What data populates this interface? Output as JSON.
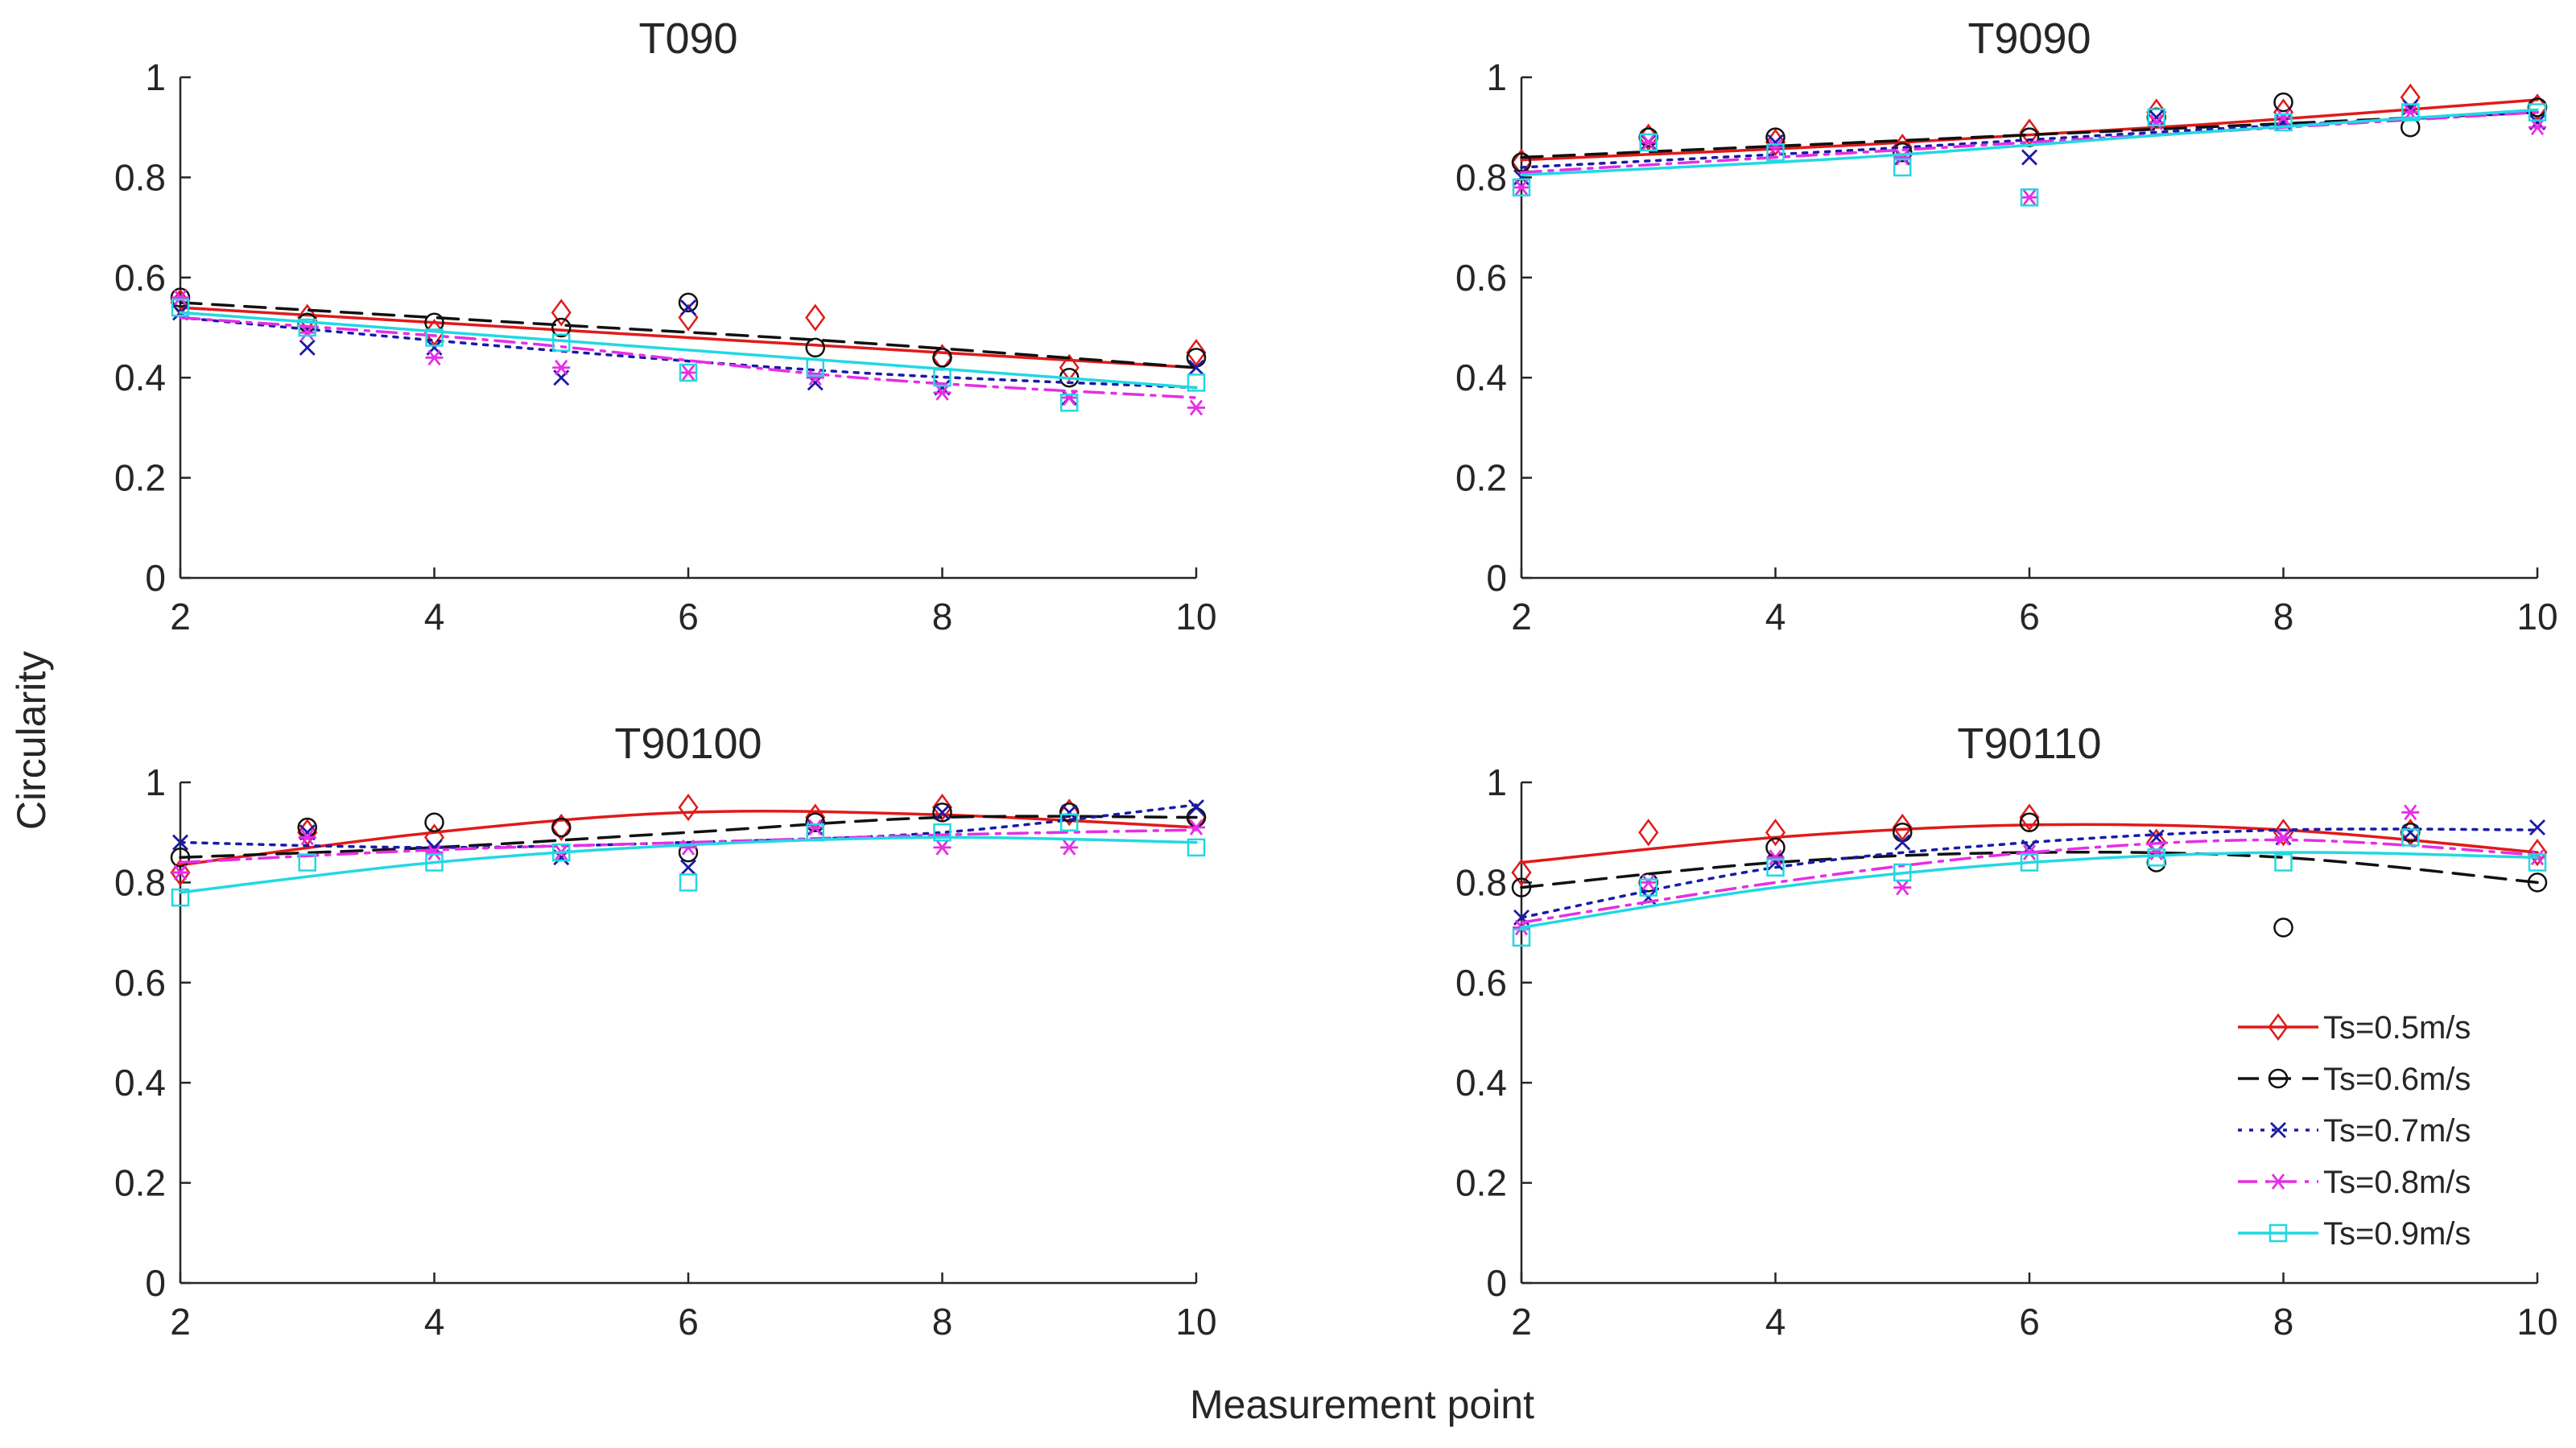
{
  "figure": {
    "xlabel": "Measurement point",
    "ylabel": "Circularity"
  },
  "legend": {
    "placement": "bottom-right of panel T90110",
    "entries": [
      "Ts=0.5m/s",
      "Ts=0.6m/s",
      "Ts=0.7m/s",
      "Ts=0.8m/s",
      "Ts=0.9m/s"
    ]
  },
  "series_styles": [
    {
      "name": "Ts=0.5m/s",
      "color": "#e11a1a",
      "marker": "diamond",
      "dash": "solid"
    },
    {
      "name": "Ts=0.6m/s",
      "color": "#111111",
      "marker": "circle",
      "dash": "dashed"
    },
    {
      "name": "Ts=0.7m/s",
      "color": "#1a1aa6",
      "marker": "x",
      "dash": "dotted"
    },
    {
      "name": "Ts=0.8m/s",
      "color": "#e62ee6",
      "marker": "star",
      "dash": "dashdot"
    },
    {
      "name": "Ts=0.9m/s",
      "color": "#22d8e2",
      "marker": "square",
      "dash": "solid"
    }
  ],
  "chart_data": [
    {
      "type": "scatter",
      "title": "T090",
      "xlabel": "Measurement point",
      "ylabel": "Circularity",
      "xlim": [
        2,
        10
      ],
      "ylim": [
        0,
        1
      ],
      "xticks": [
        2,
        4,
        6,
        8,
        10
      ],
      "yticks": [
        0,
        0.2,
        0.4,
        0.6,
        0.8,
        1
      ],
      "x": [
        2,
        3,
        4,
        5,
        6,
        7,
        8,
        9,
        10
      ],
      "series": [
        {
          "name": "Ts=0.5m/s",
          "values": [
            0.55,
            0.52,
            0.49,
            0.53,
            0.52,
            0.52,
            0.44,
            0.42,
            0.45
          ],
          "fit": [
            0.54,
            0.5,
            0.46,
            0.42
          ]
        },
        {
          "name": "Ts=0.6m/s",
          "values": [
            0.56,
            0.51,
            0.51,
            0.5,
            0.55,
            0.46,
            0.44,
            0.4,
            0.44
          ],
          "fit": [
            0.55,
            0.51,
            0.47,
            0.42
          ]
        },
        {
          "name": "Ts=0.7m/s",
          "values": [
            0.53,
            0.46,
            0.46,
            0.4,
            0.54,
            0.39,
            0.38,
            0.36,
            0.42
          ],
          "fit": [
            0.52,
            0.46,
            0.41,
            0.38
          ]
        },
        {
          "name": "Ts=0.8m/s",
          "values": [
            0.56,
            0.49,
            0.44,
            0.42,
            0.41,
            0.4,
            0.37,
            0.36,
            0.34
          ],
          "fit": [
            0.52,
            0.47,
            0.4,
            0.36
          ]
        },
        {
          "name": "Ts=0.9m/s",
          "values": [
            0.54,
            0.5,
            0.48,
            0.47,
            0.41,
            0.42,
            0.4,
            0.35,
            0.39
          ],
          "fit": [
            0.53,
            0.48,
            0.43,
            0.38
          ]
        }
      ]
    },
    {
      "type": "scatter",
      "title": "T9090",
      "xlabel": "Measurement point",
      "ylabel": "Circularity",
      "xlim": [
        2,
        10
      ],
      "ylim": [
        0,
        1
      ],
      "xticks": [
        2,
        4,
        6,
        8,
        10
      ],
      "yticks": [
        0,
        0.2,
        0.4,
        0.6,
        0.8,
        1
      ],
      "x": [
        2,
        3,
        4,
        5,
        6,
        7,
        8,
        9,
        10
      ],
      "series": [
        {
          "name": "Ts=0.5m/s",
          "values": [
            0.83,
            0.88,
            0.87,
            0.86,
            0.89,
            0.93,
            0.93,
            0.96,
            0.94
          ],
          "fit": [
            0.835,
            0.865,
            0.905,
            0.955
          ]
        },
        {
          "name": "Ts=0.6m/s",
          "values": [
            0.83,
            0.88,
            0.88,
            0.85,
            0.88,
            0.92,
            0.95,
            0.9,
            0.94
          ],
          "fit": [
            0.84,
            0.87,
            0.9,
            0.93
          ]
        },
        {
          "name": "Ts=0.7m/s",
          "values": [
            0.8,
            0.87,
            0.87,
            0.84,
            0.84,
            0.92,
            0.91,
            0.94,
            0.91
          ],
          "fit": [
            0.82,
            0.855,
            0.895,
            0.93
          ]
        },
        {
          "name": "Ts=0.8m/s",
          "values": [
            0.78,
            0.87,
            0.86,
            0.84,
            0.76,
            0.91,
            0.92,
            0.93,
            0.9
          ],
          "fit": [
            0.81,
            0.85,
            0.89,
            0.93
          ]
        },
        {
          "name": "Ts=0.9m/s",
          "values": [
            0.78,
            0.87,
            0.85,
            0.82,
            0.76,
            0.92,
            0.91,
            0.93,
            0.93
          ],
          "fit": [
            0.805,
            0.84,
            0.89,
            0.935
          ]
        }
      ]
    },
    {
      "type": "scatter",
      "title": "T90100",
      "xlabel": "Measurement point",
      "ylabel": "Circularity",
      "xlim": [
        2,
        10
      ],
      "ylim": [
        0,
        1
      ],
      "xticks": [
        2,
        4,
        6,
        8,
        10
      ],
      "yticks": [
        0,
        0.2,
        0.4,
        0.6,
        0.8,
        1
      ],
      "x": [
        2,
        3,
        4,
        5,
        6,
        7,
        8,
        9,
        10
      ],
      "series": [
        {
          "name": "Ts=0.5m/s",
          "values": [
            0.82,
            0.9,
            0.89,
            0.91,
            0.95,
            0.93,
            0.95,
            0.94,
            0.93
          ],
          "fit": [
            0.835,
            0.9,
            0.94,
            0.935,
            0.91
          ]
        },
        {
          "name": "Ts=0.6m/s",
          "values": [
            0.85,
            0.91,
            0.92,
            0.91,
            0.86,
            0.92,
            0.94,
            0.94,
            0.93
          ],
          "fit": [
            0.85,
            0.87,
            0.9,
            0.93,
            0.93
          ]
        },
        {
          "name": "Ts=0.7m/s",
          "values": [
            0.88,
            0.9,
            0.87,
            0.85,
            0.83,
            0.91,
            0.94,
            0.94,
            0.95
          ],
          "fit": [
            0.88,
            0.87,
            0.88,
            0.9,
            0.955
          ]
        },
        {
          "name": "Ts=0.8m/s",
          "values": [
            0.82,
            0.89,
            0.86,
            0.86,
            0.87,
            0.91,
            0.87,
            0.87,
            0.91
          ],
          "fit": [
            0.84,
            0.865,
            0.88,
            0.895,
            0.905
          ]
        },
        {
          "name": "Ts=0.9m/s",
          "values": [
            0.77,
            0.84,
            0.84,
            0.86,
            0.8,
            0.9,
            0.9,
            0.92,
            0.87
          ],
          "fit": [
            0.78,
            0.84,
            0.875,
            0.89,
            0.88
          ]
        }
      ]
    },
    {
      "type": "scatter",
      "title": "T90110",
      "xlabel": "Measurement point",
      "ylabel": "Circularity",
      "xlim": [
        2,
        10
      ],
      "ylim": [
        0,
        1
      ],
      "xticks": [
        2,
        4,
        6,
        8,
        10
      ],
      "yticks": [
        0,
        0.2,
        0.4,
        0.6,
        0.8,
        1
      ],
      "x": [
        2,
        3,
        4,
        5,
        6,
        7,
        8,
        9,
        10
      ],
      "series": [
        {
          "name": "Ts=0.5m/s",
          "values": [
            0.82,
            0.9,
            0.9,
            0.91,
            0.93,
            0.88,
            0.9,
            0.9,
            0.86
          ],
          "fit": [
            0.84,
            0.89,
            0.915,
            0.905,
            0.86
          ]
        },
        {
          "name": "Ts=0.6m/s",
          "values": [
            0.79,
            0.8,
            0.87,
            0.9,
            0.92,
            0.84,
            0.71,
            0.9,
            0.8
          ],
          "fit": [
            0.79,
            0.84,
            0.86,
            0.85,
            0.8
          ]
        },
        {
          "name": "Ts=0.7m/s",
          "values": [
            0.73,
            0.77,
            0.84,
            0.88,
            0.87,
            0.89,
            0.89,
            0.9,
            0.91
          ],
          "fit": [
            0.73,
            0.83,
            0.88,
            0.905,
            0.905
          ]
        },
        {
          "name": "Ts=0.8m/s",
          "values": [
            0.71,
            0.8,
            0.85,
            0.79,
            0.86,
            0.86,
            0.89,
            0.94,
            0.85
          ],
          "fit": [
            0.72,
            0.8,
            0.86,
            0.885,
            0.855
          ]
        },
        {
          "name": "Ts=0.9m/s",
          "values": [
            0.69,
            0.79,
            0.83,
            0.82,
            0.84,
            0.85,
            0.84,
            0.89,
            0.84
          ],
          "fit": [
            0.71,
            0.79,
            0.84,
            0.86,
            0.85
          ]
        }
      ]
    }
  ]
}
